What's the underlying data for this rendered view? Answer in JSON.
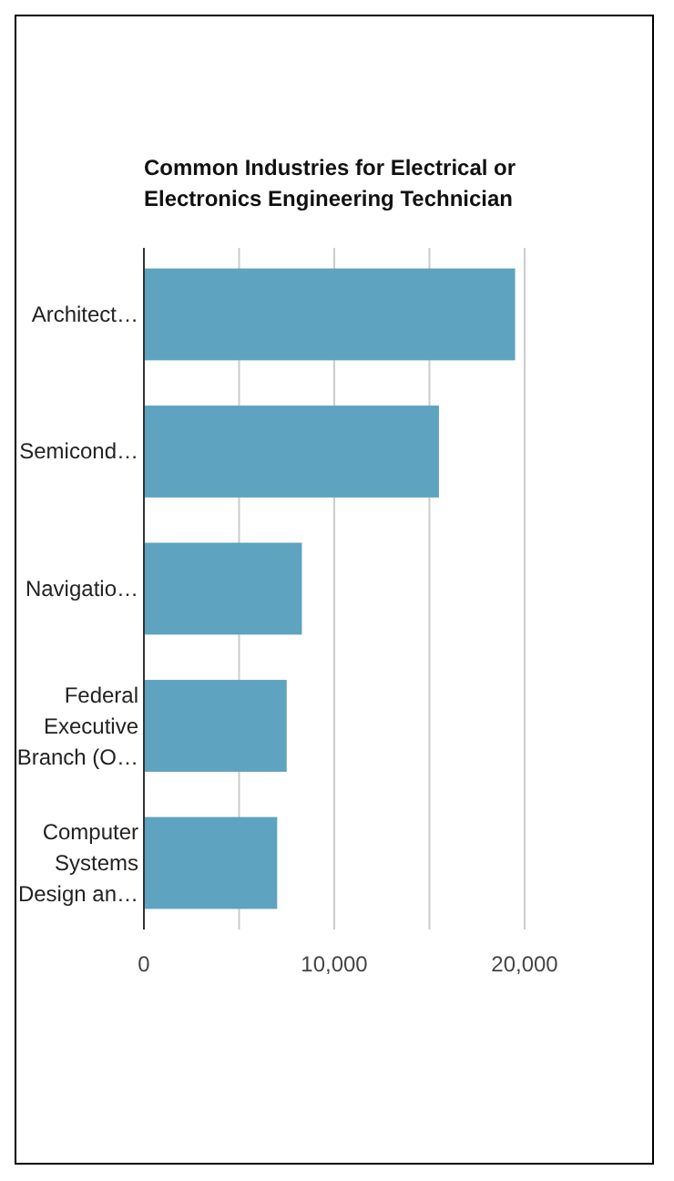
{
  "chart_data": {
    "type": "bar",
    "orientation": "horizontal",
    "title": "Common Industries for Electrical or Electronics Engineering Technician",
    "categories": [
      "Architect…",
      "Semicond…",
      "Navigatio…",
      "Federal Executive Branch (O…",
      "Computer Systems Design an…"
    ],
    "values": [
      19500,
      15500,
      8300,
      7500,
      7000
    ],
    "color": "#5ea3c0",
    "xlim": [
      0,
      20000
    ],
    "xticks": [
      0,
      {
        "value": 5000,
        "label": null
      },
      {
        "value": 10000,
        "label": "10,000"
      },
      {
        "value": 15000,
        "label": null
      },
      {
        "value": 20000,
        "label": "20,000"
      }
    ],
    "grid": "x"
  }
}
